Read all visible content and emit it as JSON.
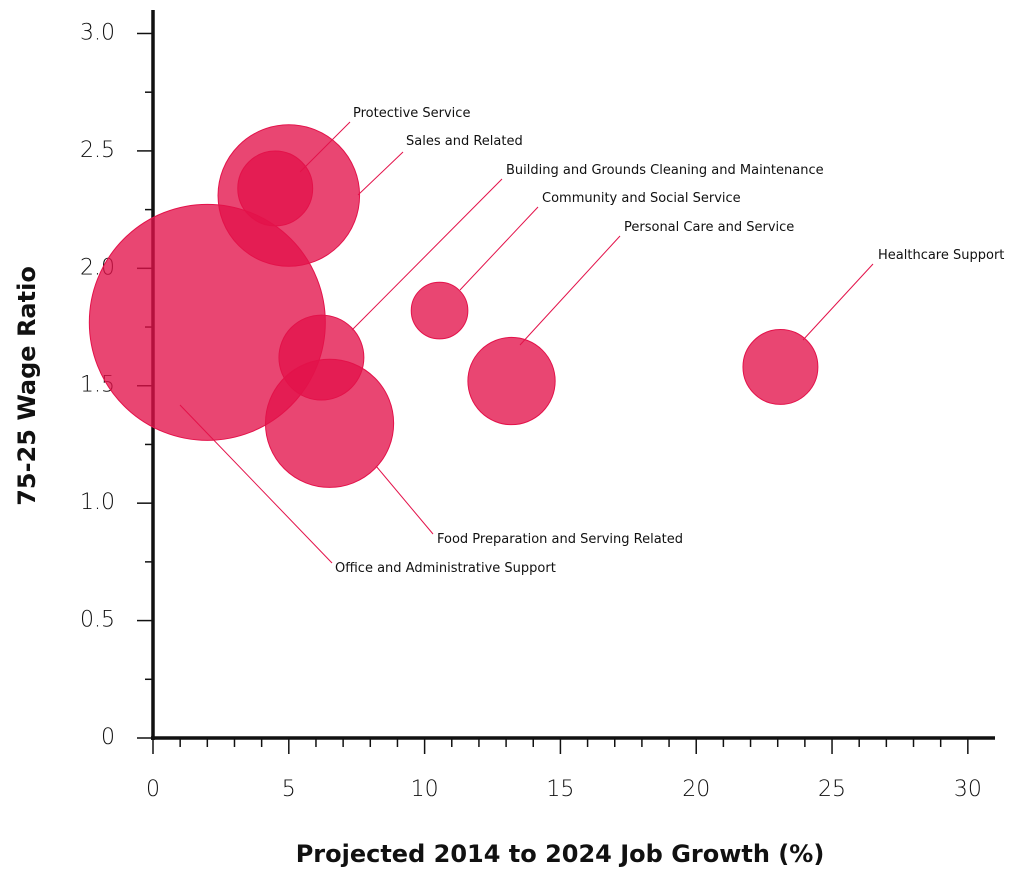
{
  "chart_data": {
    "type": "bubble",
    "xlabel": "Projected 2014 to 2024 Job Growth (%)",
    "ylabel": "75-25 Wage Ratio",
    "labels": [
      "Office and Administrative Support",
      "Sales and Related",
      "Protective Service",
      "Building and Grounds Cleaning and Maintenance",
      "Food Preparation and Serving Related",
      "Community and Social Service",
      "Personal Care and Service",
      "Healthcare Support"
    ],
    "x": [
      2.0,
      5.0,
      4.5,
      6.2,
      6.5,
      10.55,
      13.2,
      23.1
    ],
    "y": [
      1.77,
      2.31,
      2.34,
      1.62,
      1.34,
      1.82,
      1.52,
      1.58
    ],
    "sizes": [
      139,
      50,
      14,
      18,
      41,
      8,
      19,
      14
    ],
    "color": "#e3124a",
    "xlim": [
      0,
      31
    ],
    "ylim": [
      0,
      3.1
    ],
    "xticks": [
      0,
      5,
      10,
      15,
      20,
      25,
      30
    ],
    "yticks": [
      0,
      0.5,
      {
        "value": 1,
        "label": "1.0"
      },
      1.5,
      {
        "value": 2,
        "label": "2.0"
      },
      2.5,
      {
        "value": 3,
        "label": "3.0"
      }
    ]
  }
}
